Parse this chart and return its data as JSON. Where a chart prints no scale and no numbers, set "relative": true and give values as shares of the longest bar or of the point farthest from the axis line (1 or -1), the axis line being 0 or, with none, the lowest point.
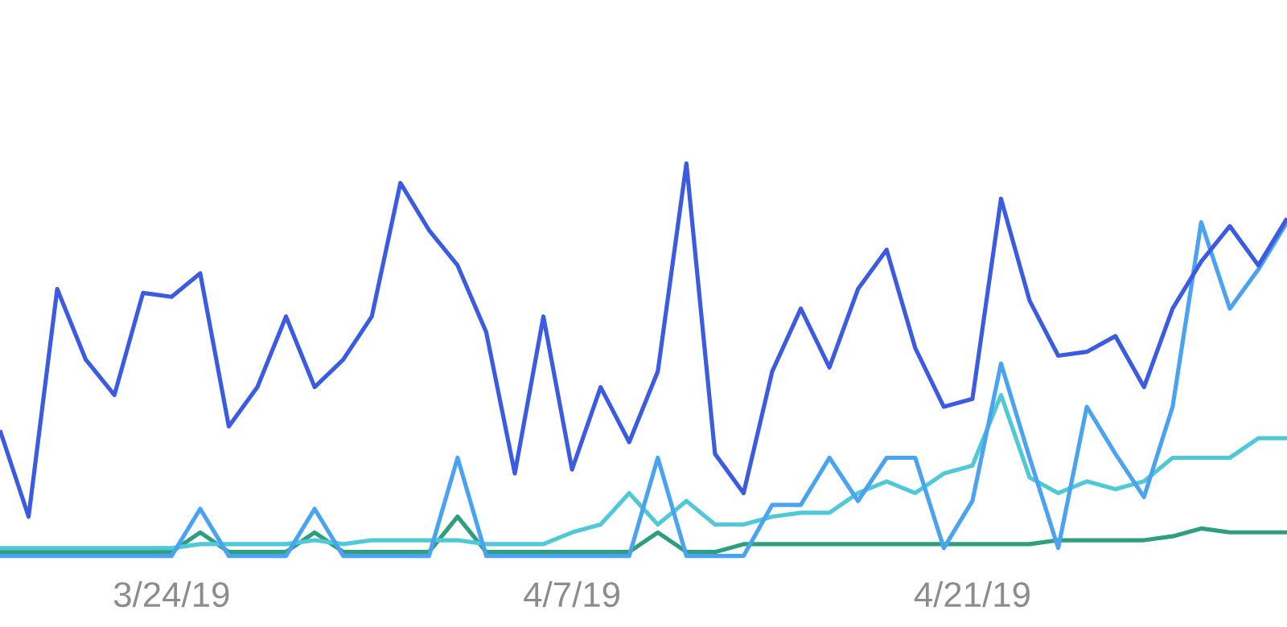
{
  "chart_data": {
    "type": "line",
    "relative": true,
    "categories": [
      null,
      null,
      null,
      null,
      null,
      null,
      "3/24/19",
      null,
      null,
      null,
      null,
      null,
      null,
      null,
      null,
      null,
      null,
      null,
      null,
      null,
      "4/7/19",
      null,
      null,
      null,
      null,
      null,
      null,
      null,
      null,
      null,
      null,
      null,
      null,
      null,
      "4/21/19",
      null,
      null,
      null,
      null,
      null,
      null,
      null,
      null,
      null,
      null,
      null
    ],
    "tick_labels": "x",
    "series": [
      {
        "color": "#2e9e7e",
        "values": [
          0.01,
          0.01,
          0.01,
          0.01,
          0.01,
          0.01,
          0.01,
          0.06,
          0.01,
          0.01,
          0.01,
          0.06,
          0.01,
          0.01,
          0.01,
          0.01,
          0.1,
          0.01,
          0.01,
          0.01,
          0.01,
          0.01,
          0.01,
          0.06,
          0.01,
          0.01,
          0.03,
          0.03,
          0.03,
          0.03,
          0.03,
          0.03,
          0.03,
          0.03,
          0.03,
          0.03,
          0.03,
          0.04,
          0.04,
          0.04,
          0.04,
          0.05,
          0.07,
          0.06,
          0.06,
          0.06
        ]
      },
      {
        "color": "#4fc8d8",
        "values": [
          0.02,
          0.02,
          0.02,
          0.02,
          0.02,
          0.02,
          0.02,
          0.03,
          0.03,
          0.03,
          0.03,
          0.04,
          0.03,
          0.04,
          0.04,
          0.04,
          0.04,
          0.03,
          0.03,
          0.03,
          0.06,
          0.08,
          0.16,
          0.08,
          0.14,
          0.08,
          0.08,
          0.1,
          0.11,
          0.11,
          0.16,
          0.19,
          0.16,
          0.21,
          0.23,
          0.41,
          0.2,
          0.16,
          0.19,
          0.17,
          0.19,
          0.25,
          0.25,
          0.25,
          0.3,
          0.3
        ]
      },
      {
        "color": "#4aa3f0",
        "values": [
          0,
          0,
          0,
          0,
          0,
          0,
          0,
          0.12,
          0,
          0,
          0,
          0.12,
          0,
          0,
          0,
          0,
          0.25,
          0,
          0,
          0,
          0,
          0,
          0,
          0.25,
          0,
          0,
          0,
          0.13,
          0.13,
          0.25,
          0.14,
          0.25,
          0.25,
          0.02,
          0.14,
          0.49,
          0.25,
          0.02,
          0.38,
          0.26,
          0.15,
          0.38,
          0.85,
          0.63,
          0.73,
          0.85
        ]
      },
      {
        "color": "#3b5be0",
        "values": [
          0.32,
          0.1,
          0.68,
          0.5,
          0.41,
          0.67,
          0.66,
          0.72,
          0.33,
          0.43,
          0.61,
          0.43,
          0.5,
          0.61,
          0.95,
          0.83,
          0.74,
          0.57,
          0.21,
          0.61,
          0.22,
          0.43,
          0.29,
          0.47,
          1.0,
          0.26,
          0.16,
          0.47,
          0.63,
          0.48,
          0.68,
          0.78,
          0.53,
          0.38,
          0.4,
          0.91,
          0.65,
          0.51,
          0.52,
          0.56,
          0.43,
          0.63,
          0.75,
          0.84,
          0.74,
          0.86
        ]
      }
    ]
  }
}
